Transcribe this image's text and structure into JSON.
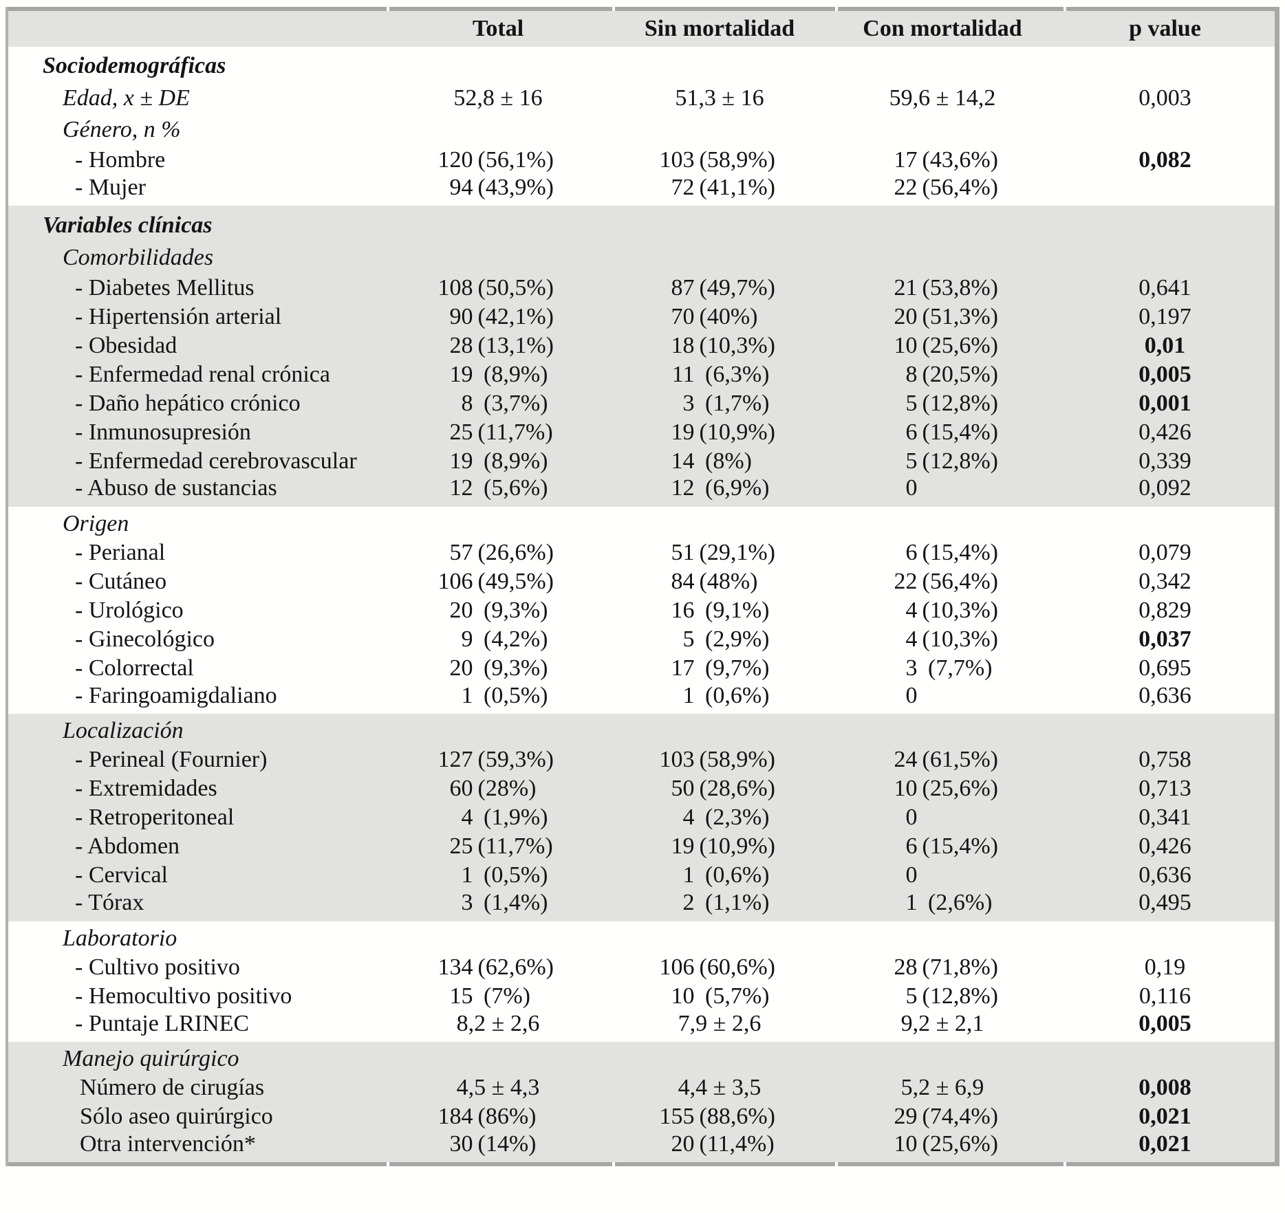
{
  "colors": {
    "band": "#e2e2e0",
    "bar": "#a5a5a3",
    "text": "#141414",
    "paper": "#fffffe"
  },
  "table": {
    "columns": [
      "",
      "Total",
      "Sin mortalidad",
      "Con mortalidad",
      "p value"
    ],
    "sections": [
      {
        "id": "sociodemograficas",
        "shade": "white",
        "rows": [
          {
            "style": "section",
            "label": "Sociodemográficas"
          },
          {
            "style": "sub",
            "label": "Edad, x ± DE",
            "total": "52,8 ± 16",
            "sin": "51,3 ± 16",
            "con": "59,6 ± 14,2",
            "p": "0,003",
            "p_bold": false
          },
          {
            "style": "sub",
            "label": "Género, n %"
          },
          {
            "style": "item",
            "label": "- Hombre",
            "total": "120 (56,1%)",
            "sin": "103 (58,9%)",
            "con": "17 (43,6%)",
            "p": "0,082",
            "p_bold": true
          },
          {
            "style": "item",
            "label": "- Mujer",
            "total": "94 (43,9%)",
            "sin": "72 (41,1%)",
            "con": "22 (56,4%)"
          }
        ]
      },
      {
        "id": "variables-clinicas",
        "shade": "gray",
        "rows": [
          {
            "style": "section",
            "label": "Variables clínicas"
          },
          {
            "style": "sub",
            "label": "Comorbilidades"
          },
          {
            "style": "item",
            "label": "- Diabetes Mellitus",
            "total": "108 (50,5%)",
            "sin": "87 (49,7%)",
            "con": "21 (53,8%)",
            "p": "0,641",
            "p_bold": false
          },
          {
            "style": "item",
            "label": "- Hipertensión arterial",
            "total": "90 (42,1%)",
            "sin": "70 (40%)",
            "con": "20 (51,3%)",
            "p": "0,197",
            "p_bold": false
          },
          {
            "style": "item",
            "label": "- Obesidad",
            "total": "28 (13,1%)",
            "sin": "18 (10,3%)",
            "con": "10 (25,6%)",
            "p": "0,01",
            "p_bold": true
          },
          {
            "style": "item",
            "label": "- Enfermedad renal crónica",
            "total": "19  (8,9%)",
            "sin": "11  (6,3%)",
            "con": "8 (20,5%)",
            "p": "0,005",
            "p_bold": true
          },
          {
            "style": "item",
            "label": "- Daño hepático crónico",
            "total": "8  (3,7%)",
            "sin": "3  (1,7%)",
            "con": "5 (12,8%)",
            "p": "0,001",
            "p_bold": true
          },
          {
            "style": "item",
            "label": "- Inmunosupresión",
            "total": "25 (11,7%)",
            "sin": "19 (10,9%)",
            "con": "6 (15,4%)",
            "p": "0,426",
            "p_bold": false
          },
          {
            "style": "item",
            "label": "- Enfermedad cerebrovascular",
            "total": "19  (8,9%)",
            "sin": "14  (8%)",
            "con": "5 (12,8%)",
            "p": "0,339",
            "p_bold": false
          },
          {
            "style": "item",
            "label": "- Abuso de sustancias",
            "total": "12  (5,6%)",
            "sin": "12  (6,9%)",
            "con": "0",
            "p": "0,092",
            "p_bold": false
          }
        ]
      },
      {
        "id": "origen",
        "shade": "white",
        "rows": [
          {
            "style": "sub",
            "label": "Origen"
          },
          {
            "style": "item",
            "label": "- Perianal",
            "total": "57 (26,6%)",
            "sin": "51 (29,1%)",
            "con": "6 (15,4%)",
            "p": "0,079",
            "p_bold": false
          },
          {
            "style": "item",
            "label": "- Cutáneo",
            "total": "106 (49,5%)",
            "sin": "84 (48%)",
            "con": "22 (56,4%)",
            "p": "0,342",
            "p_bold": false
          },
          {
            "style": "item",
            "label": "- Urológico",
            "total": "20  (9,3%)",
            "sin": "16  (9,1%)",
            "con": "4 (10,3%)",
            "p": "0,829",
            "p_bold": false
          },
          {
            "style": "item",
            "label": "- Ginecológico",
            "total": "9  (4,2%)",
            "sin": "5  (2,9%)",
            "con": "4 (10,3%)",
            "p": "0,037",
            "p_bold": true
          },
          {
            "style": "item",
            "label": "- Colorrectal",
            "total": "20  (9,3%)",
            "sin": "17  (9,7%)",
            "con": "3  (7,7%)",
            "p": "0,695",
            "p_bold": false
          },
          {
            "style": "item",
            "label": "- Faringoamigdaliano",
            "total": "1  (0,5%)",
            "sin": "1  (0,6%)",
            "con": "0",
            "p": "0,636",
            "p_bold": false
          }
        ]
      },
      {
        "id": "localizacion",
        "shade": "gray",
        "rows": [
          {
            "style": "sub",
            "label": "Localización"
          },
          {
            "style": "item",
            "label": "- Perineal (Fournier)",
            "total": "127 (59,3%)",
            "sin": "103 (58,9%)",
            "con": "24 (61,5%)",
            "p": "0,758",
            "p_bold": false
          },
          {
            "style": "item",
            "label": "- Extremidades",
            "total": "60 (28%)",
            "sin": "50 (28,6%)",
            "con": "10 (25,6%)",
            "p": "0,713",
            "p_bold": false
          },
          {
            "style": "item",
            "label": "- Retroperitoneal",
            "total": "4  (1,9%)",
            "sin": "4  (2,3%)",
            "con": "0",
            "p": "0,341",
            "p_bold": false
          },
          {
            "style": "item",
            "label": "- Abdomen",
            "total": "25 (11,7%)",
            "sin": "19 (10,9%)",
            "con": "6 (15,4%)",
            "p": "0,426",
            "p_bold": false
          },
          {
            "style": "item",
            "label": "- Cervical",
            "total": "1  (0,5%)",
            "sin": "1  (0,6%)",
            "con": "0",
            "p": "0,636",
            "p_bold": false
          },
          {
            "style": "item",
            "label": "- Tórax",
            "total": "3  (1,4%)",
            "sin": "2  (1,1%)",
            "con": "1  (2,6%)",
            "p": "0,495",
            "p_bold": false
          }
        ]
      },
      {
        "id": "laboratorio",
        "shade": "white",
        "rows": [
          {
            "style": "sub",
            "label": "Laboratorio"
          },
          {
            "style": "item",
            "label": "- Cultivo positivo",
            "total": "134 (62,6%)",
            "sin": "106 (60,6%)",
            "con": "28 (71,8%)",
            "p": "0,19",
            "p_bold": false
          },
          {
            "style": "item",
            "label": "- Hemocultivo positivo",
            "total": "15  (7%)",
            "sin": "10  (5,7%)",
            "con": "5 (12,8%)",
            "p": "0,116",
            "p_bold": false
          },
          {
            "style": "item",
            "label": "- Puntaje LRINEC",
            "total": "8,2 ± 2,6",
            "sin": "7,9 ± 2,6",
            "con": "9,2 ± 2,1",
            "p": "0,005",
            "p_bold": true
          }
        ]
      },
      {
        "id": "manejo-quirurgico",
        "shade": "gray",
        "rows": [
          {
            "style": "sub",
            "label": "Manejo quirúrgico"
          },
          {
            "style": "plain",
            "label": "Número de cirugías",
            "total": "4,5 ± 4,3",
            "sin": "4,4 ± 3,5",
            "con": "5,2 ± 6,9",
            "p": "0,008",
            "p_bold": true
          },
          {
            "style": "plain",
            "label": "Sólo aseo quirúrgico",
            "total": "184 (86%)",
            "sin": "155 (88,6%)",
            "con": "29 (74,4%)",
            "p": "0,021",
            "p_bold": true
          },
          {
            "style": "plain",
            "label": "Otra intervención*",
            "total": "30 (14%)",
            "sin": "20 (11,4%)",
            "con": "10 (25,6%)",
            "p": "0,021",
            "p_bold": true
          }
        ]
      }
    ]
  }
}
